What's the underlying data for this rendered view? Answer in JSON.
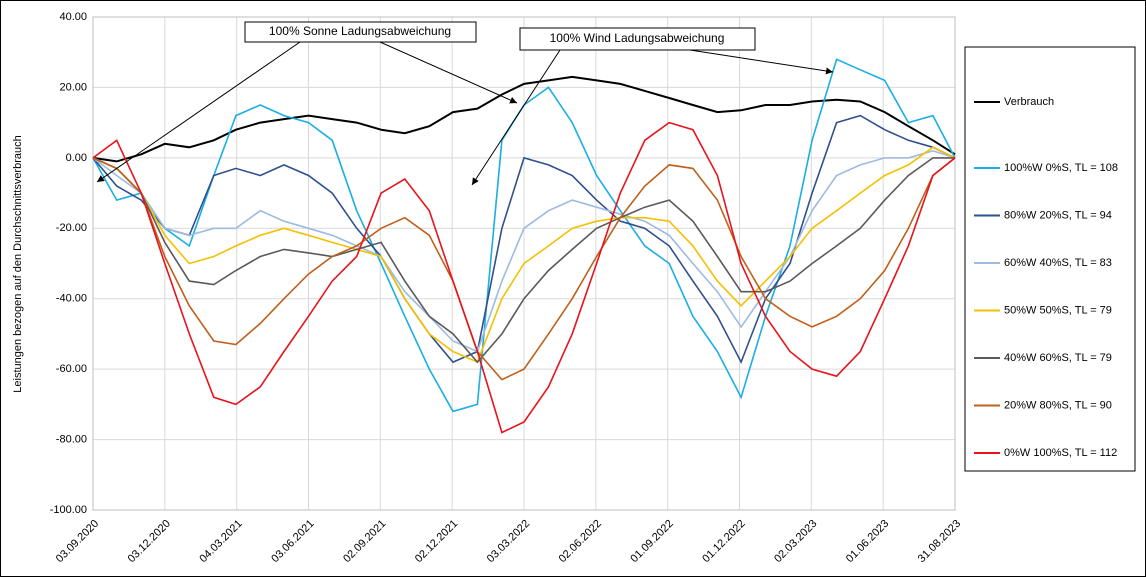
{
  "chart_data": {
    "type": "line",
    "y_label": "Leistungen bezogen auf den Durchschnittsverbrauch",
    "annotations": [
      "100% Sonne Ladungsabweichung",
      "100% Wind Ladungsabweichung"
    ],
    "x": [
      "03.09.2020",
      "03.10.2020",
      "03.11.2020",
      "03.12.2020",
      "03.01.2021",
      "03.02.2021",
      "03.03.2021",
      "03.04.2021",
      "03.05.2021",
      "03.06.2021",
      "03.07.2021",
      "03.08.2021",
      "03.09.2021",
      "03.10.2021",
      "03.11.2021",
      "03.12.2021",
      "03.01.2022",
      "03.02.2022",
      "03.03.2022",
      "03.04.2022",
      "03.05.2022",
      "03.06.2022",
      "03.07.2022",
      "03.08.2022",
      "03.09.2022",
      "03.10.2022",
      "03.11.2022",
      "03.12.2022",
      "03.01.2023",
      "03.02.2023",
      "03.03.2023",
      "03.04.2023",
      "03.05.2023",
      "03.06.2023",
      "03.07.2023",
      "03.08.2023",
      "31.08.2023"
    ],
    "xlim": [
      "03.09.2020",
      "31.08.2023"
    ],
    "xticks": [
      "03.09.2020",
      "03.12.2020",
      "04.03.2021",
      "03.06.2021",
      "02.09.2021",
      "02.12.2021",
      "03.03.2022",
      "02.06.2022",
      "01.09.2022",
      "01.12.2022",
      "02.03.2023",
      "01.06.2023",
      "31.08.2023"
    ],
    "ylim": [
      -100,
      40
    ],
    "yticks": [
      {
        "value": -100,
        "label": "-100.00"
      },
      {
        "value": -80,
        "label": "-80.00"
      },
      {
        "value": -60,
        "label": "-60.00"
      },
      {
        "value": -40,
        "label": "-40.00"
      },
      {
        "value": -20,
        "label": "-20.00"
      },
      {
        "value": 0,
        "label": "0.00"
      },
      {
        "value": 20,
        "label": "20.00"
      },
      {
        "value": 40,
        "label": "40.00"
      }
    ],
    "grid": true,
    "legend": "right",
    "series": [
      {
        "name": "Verbrauch",
        "color": "#000000",
        "values": [
          0,
          -1,
          1,
          4,
          3,
          5,
          8,
          10,
          11,
          12,
          11,
          10,
          8,
          7,
          9,
          13,
          14,
          18,
          21,
          22,
          23,
          22,
          21,
          19,
          17,
          15,
          13,
          13.5,
          15,
          15,
          16,
          16.5,
          16,
          13,
          9,
          5,
          1
        ]
      },
      {
        "name": "100%W 0%S, TL = 108",
        "color": "#1aaee3",
        "values": [
          0,
          -12,
          -10,
          -20,
          -25,
          -5,
          12,
          15,
          12,
          10,
          5,
          -15,
          -30,
          -45,
          -60,
          -72,
          -70,
          5,
          15,
          20,
          10,
          -5,
          -15,
          -25,
          -30,
          -45,
          -55,
          -68,
          -45,
          -25,
          5,
          28,
          25,
          22,
          10,
          12,
          0
        ]
      },
      {
        "name": "80%W 20%S, TL = 94",
        "color": "#2f4f8f",
        "values": [
          0,
          -8,
          -12,
          -20,
          -22,
          -5,
          -3,
          -5,
          -2,
          -5,
          -10,
          -20,
          -28,
          -40,
          -50,
          -58,
          -55,
          -20,
          0,
          -2,
          -5,
          -12,
          -18,
          -20,
          -25,
          -35,
          -45,
          -58,
          -40,
          -30,
          -10,
          10,
          12,
          8,
          5,
          3,
          0
        ]
      },
      {
        "name": "60%W 40%S, TL = 83",
        "color": "#9dbbe0",
        "values": [
          0,
          -5,
          -10,
          -20,
          -22,
          -20,
          -20,
          -15,
          -18,
          -20,
          -22,
          -25,
          -28,
          -38,
          -45,
          -52,
          -55,
          -35,
          -20,
          -15,
          -12,
          -14,
          -16,
          -18,
          -22,
          -30,
          -38,
          -48,
          -38,
          -28,
          -15,
          -5,
          -2,
          0,
          0,
          2,
          0
        ]
      },
      {
        "name": "50%W 50%S, TL = 79",
        "color": "#f5c000",
        "values": [
          0,
          -3,
          -10,
          -22,
          -30,
          -28,
          -25,
          -22,
          -20,
          -22,
          -24,
          -26,
          -28,
          -40,
          -50,
          -55,
          -58,
          -40,
          -30,
          -25,
          -20,
          -18,
          -17,
          -17,
          -18,
          -25,
          -35,
          -42,
          -35,
          -28,
          -20,
          -15,
          -10,
          -5,
          -2,
          3,
          0
        ]
      },
      {
        "name": "40%W 60%S, TL = 79",
        "color": "#5a5a5a",
        "values": [
          0,
          -3,
          -10,
          -24,
          -35,
          -36,
          -32,
          -28,
          -26,
          -27,
          -28,
          -26,
          -24,
          -35,
          -45,
          -50,
          -58,
          -50,
          -40,
          -32,
          -26,
          -20,
          -17,
          -14,
          -12,
          -18,
          -28,
          -38,
          -38,
          -35,
          -30,
          -25,
          -20,
          -12,
          -5,
          0,
          0
        ]
      },
      {
        "name": "20%W 80%S, TL = 90",
        "color": "#c0601a",
        "values": [
          0,
          -3,
          -10,
          -28,
          -42,
          -52,
          -53,
          -47,
          -40,
          -33,
          -28,
          -25,
          -20,
          -17,
          -22,
          -35,
          -55,
          -63,
          -60,
          -50,
          -40,
          -28,
          -17,
          -8,
          -2,
          -3,
          -12,
          -28,
          -40,
          -45,
          -48,
          -45,
          -40,
          -32,
          -20,
          -5,
          0
        ]
      },
      {
        "name": "0%W 100%S, TL = 112",
        "color": "#e8131b",
        "values": [
          0,
          5,
          -10,
          -30,
          -50,
          -68,
          -70,
          -65,
          -55,
          -45,
          -35,
          -28,
          -10,
          -6,
          -15,
          -35,
          -55,
          -78,
          -75,
          -65,
          -50,
          -30,
          -10,
          5,
          10,
          8,
          -5,
          -30,
          -45,
          -55,
          -60,
          -62,
          -55,
          -40,
          -25,
          -5,
          0
        ]
      }
    ]
  }
}
